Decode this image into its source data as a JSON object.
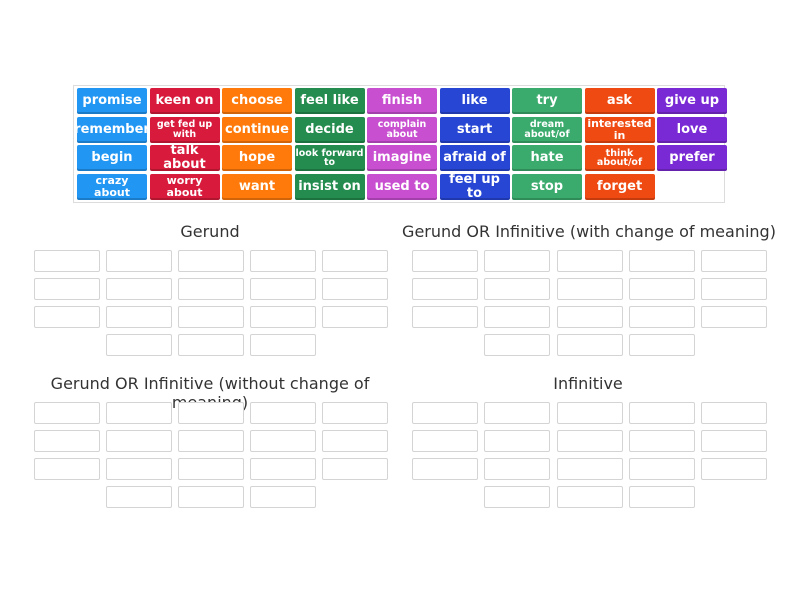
{
  "colors": {
    "blue": "#2196f3",
    "red": "#d81b3c",
    "orange": "#ff7a0a",
    "green": "#238c4e",
    "pink": "#c94fd1",
    "navy": "#2746d3",
    "mint": "#3aab6d",
    "vermilion": "#ef4a12",
    "purple": "#7a2ad4"
  },
  "tiles": [
    [
      {
        "label": "promise",
        "color": "blue"
      },
      {
        "label": "keen on",
        "color": "red"
      },
      {
        "label": "choose",
        "color": "orange"
      },
      {
        "label": "feel like",
        "color": "green"
      },
      {
        "label": "finish",
        "color": "pink"
      },
      {
        "label": "like",
        "color": "navy"
      },
      {
        "label": "try",
        "color": "mint"
      },
      {
        "label": "ask",
        "color": "vermilion"
      },
      {
        "label": "give up",
        "color": "purple"
      }
    ],
    [
      {
        "label": "remember",
        "color": "blue"
      },
      {
        "label": "get fed up with",
        "color": "red",
        "size": "xs"
      },
      {
        "label": "continue",
        "color": "orange"
      },
      {
        "label": "decide",
        "color": "green"
      },
      {
        "label": "complain about",
        "color": "pink",
        "size": "xs"
      },
      {
        "label": "start",
        "color": "navy"
      },
      {
        "label": "dream about/of",
        "color": "mint",
        "size": "xs"
      },
      {
        "label": "interested in",
        "color": "vermilion",
        "size": "sm"
      },
      {
        "label": "love",
        "color": "purple"
      }
    ],
    [
      {
        "label": "begin",
        "color": "blue"
      },
      {
        "label": "talk about",
        "color": "red"
      },
      {
        "label": "hope",
        "color": "orange"
      },
      {
        "label": "look forward to",
        "color": "green",
        "size": "xs"
      },
      {
        "label": "imagine",
        "color": "pink"
      },
      {
        "label": "afraid of",
        "color": "navy"
      },
      {
        "label": "hate",
        "color": "mint"
      },
      {
        "label": "think about/of",
        "color": "vermilion",
        "size": "xs"
      },
      {
        "label": "prefer",
        "color": "purple"
      }
    ],
    [
      {
        "label": "crazy about",
        "color": "blue",
        "size": "sm"
      },
      {
        "label": "worry about",
        "color": "red",
        "size": "sm"
      },
      {
        "label": "want",
        "color": "orange"
      },
      {
        "label": "insist on",
        "color": "green"
      },
      {
        "label": "used to",
        "color": "pink"
      },
      {
        "label": "feel up to",
        "color": "navy"
      },
      {
        "label": "stop",
        "color": "mint"
      },
      {
        "label": "forget",
        "color": "vermilion"
      }
    ]
  ],
  "groups": [
    {
      "title": "Gerund"
    },
    {
      "title": "Gerund OR Infinitive (with change of meaning)"
    },
    {
      "title": "Gerund OR Infinitive (without change of meaning)"
    },
    {
      "title": "Infinitive"
    }
  ]
}
